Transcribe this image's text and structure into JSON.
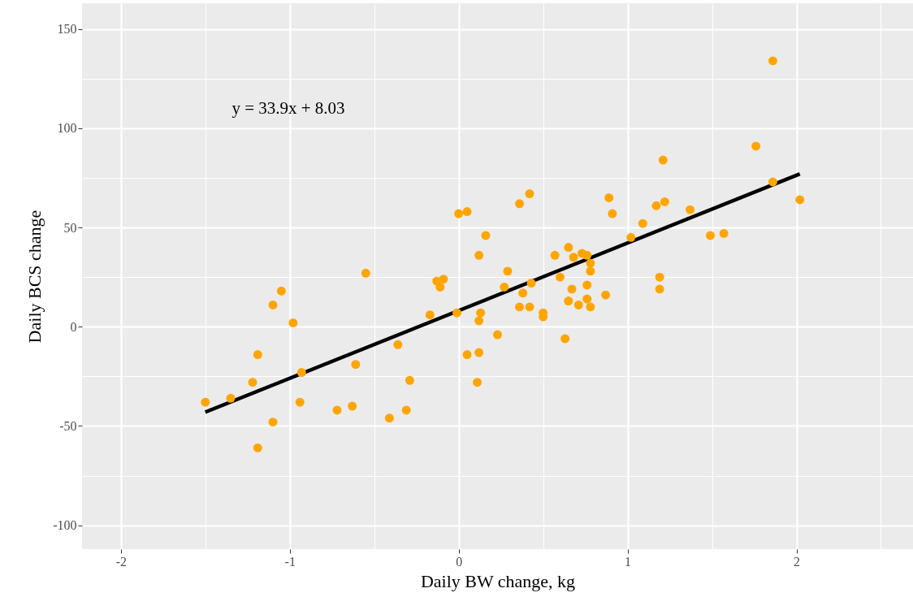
{
  "chart_data": {
    "type": "scatter",
    "xlabel": "Daily BW change, kg",
    "ylabel": "Daily BCS change",
    "annotations": [
      "y = 33.9x + 8.03"
    ],
    "xlim": [
      -2.23,
      2.69
    ],
    "ylim": [
      -112,
      163
    ],
    "xticks": [
      -2,
      -1,
      0,
      1,
      2
    ],
    "yticks": [
      -100,
      -50,
      0,
      50,
      100,
      150
    ],
    "grid": true,
    "series": [
      {
        "marker": "circle",
        "color": "#ffa500",
        "x": [
          -1.5,
          -1.35,
          -1.22,
          -1.19,
          -1.19,
          -1.1,
          -1.1,
          -1.05,
          -0.98,
          -0.94,
          -0.93,
          -0.72,
          -0.63,
          -0.61,
          -0.55,
          -0.41,
          -0.36,
          -0.31,
          -0.29,
          -0.17,
          -0.13,
          -0.11,
          -0.09,
          -0.01,
          0.0,
          0.05,
          0.05,
          0.11,
          0.12,
          0.12,
          0.13,
          0.12,
          0.16,
          0.23,
          0.27,
          0.29,
          0.36,
          0.36,
          0.38,
          0.42,
          0.43,
          0.42,
          0.5,
          0.5,
          0.57,
          0.6,
          0.63,
          0.65,
          0.65,
          0.67,
          0.68,
          0.71,
          0.73,
          0.76,
          0.76,
          0.76,
          0.78,
          0.78,
          0.78,
          0.87,
          0.89,
          0.91,
          1.02,
          1.09,
          1.17,
          1.19,
          1.19,
          1.21,
          1.22,
          1.37,
          1.49,
          1.57,
          1.76,
          1.86,
          1.86,
          2.02
        ],
        "values": [
          -38,
          -36,
          -28,
          -14,
          -61,
          11,
          -48,
          18,
          2,
          -38,
          -23,
          -42,
          -40,
          -19,
          27,
          -46,
          -9,
          -42,
          -27,
          6,
          23,
          20,
          24,
          7,
          57,
          58,
          -14,
          -28,
          36,
          3,
          7,
          -13,
          46,
          -4,
          20,
          28,
          62,
          10,
          17,
          67,
          22,
          10,
          5,
          7,
          36,
          25,
          -6,
          40,
          13,
          19,
          35,
          11,
          37,
          36,
          21,
          14,
          32,
          28,
          10,
          16,
          65,
          57,
          45,
          52,
          61,
          25,
          19,
          84,
          63,
          59,
          46,
          47,
          91,
          134,
          73,
          64
        ]
      },
      {
        "type": "line",
        "color": "#000000",
        "x": [
          -1.5,
          2.02
        ],
        "values": [
          -43,
          77
        ]
      }
    ]
  }
}
